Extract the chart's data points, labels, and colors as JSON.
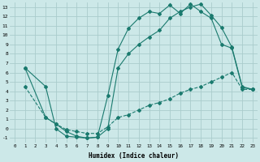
{
  "xlabel": "Humidex (Indice chaleur)",
  "bg_color": "#cce8e8",
  "grid_color": "#aacccc",
  "line_color": "#1a7a6e",
  "xlim": [
    -0.5,
    23.5
  ],
  "ylim": [
    -1.5,
    13.5
  ],
  "xticks": [
    0,
    1,
    2,
    3,
    4,
    5,
    6,
    7,
    8,
    9,
    10,
    11,
    12,
    13,
    14,
    15,
    16,
    17,
    18,
    19,
    20,
    21,
    22,
    23
  ],
  "yticks": [
    -1,
    0,
    1,
    2,
    3,
    4,
    5,
    6,
    7,
    8,
    9,
    10,
    11,
    12,
    13
  ],
  "line1_x": [
    1,
    3,
    4,
    5,
    6,
    7,
    8,
    9,
    10,
    11,
    12,
    13,
    14,
    15,
    16,
    17,
    18,
    19,
    20,
    21,
    22,
    23
  ],
  "line1_y": [
    6.5,
    4.5,
    0.0,
    -0.8,
    -0.9,
    -1.0,
    -0.9,
    3.5,
    8.5,
    10.7,
    11.8,
    12.5,
    12.3,
    13.2,
    12.3,
    13.3,
    12.5,
    11.8,
    9.0,
    8.6,
    4.4,
    4.2
  ],
  "line2_x": [
    1,
    3,
    4,
    5,
    6,
    7,
    8,
    9,
    10,
    11,
    12,
    13,
    14,
    15,
    16,
    17,
    18,
    19,
    20,
    21,
    22,
    23
  ],
  "line2_y": [
    6.5,
    1.2,
    0.5,
    -0.3,
    -0.8,
    -1.0,
    -0.9,
    0.0,
    6.5,
    8.0,
    9.0,
    9.8,
    10.5,
    11.8,
    12.5,
    13.0,
    13.3,
    12.1,
    10.8,
    8.7,
    4.5,
    4.2
  ],
  "line3_x": [
    1,
    3,
    4,
    5,
    6,
    7,
    8,
    9,
    10,
    11,
    12,
    13,
    14,
    15,
    16,
    17,
    18,
    19,
    20,
    21,
    22,
    23
  ],
  "line3_y": [
    4.5,
    1.2,
    0.5,
    -0.1,
    -0.3,
    -0.5,
    -0.5,
    0.2,
    1.2,
    1.5,
    2.0,
    2.5,
    2.8,
    3.2,
    3.8,
    4.2,
    4.5,
    5.0,
    5.5,
    6.0,
    4.2,
    4.2
  ]
}
